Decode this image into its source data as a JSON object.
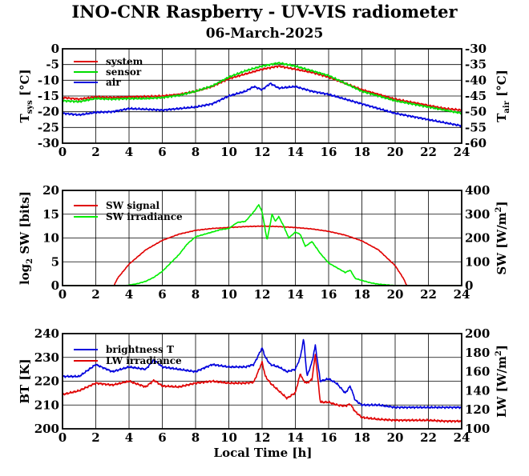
{
  "figure": {
    "title": "INO-CNR Raspberry - UV-VIS radiometer",
    "subtitle": "06-March-2025",
    "xlabel": "Local Time [h]"
  },
  "chart_data": [
    {
      "type": "line",
      "x_range": [
        0,
        24
      ],
      "x_ticks": [
        0,
        2,
        4,
        6,
        8,
        10,
        12,
        14,
        16,
        18,
        20,
        22,
        24
      ],
      "y_left": {
        "label": "T",
        "label_sub": "sys",
        "label_unit": " [°C]",
        "range": [
          -30,
          0
        ],
        "ticks": [
          0,
          -5,
          -10,
          -15,
          -20,
          -25,
          -30
        ]
      },
      "y_right": {
        "label": "T",
        "label_sub": "air",
        "label_unit": " [°C]",
        "range": [
          -60,
          -30
        ],
        "ticks": [
          -30,
          -35,
          -40,
          -45,
          -50,
          -55,
          -60
        ]
      },
      "grid": true,
      "legend_position": "top-left",
      "series": [
        {
          "name": "system",
          "color": "#e00000",
          "axis": "left",
          "x": [
            0,
            1,
            2,
            3,
            4,
            5,
            6,
            7,
            8,
            9,
            10,
            11,
            12,
            12.5,
            13,
            13.5,
            14,
            15,
            16,
            17,
            18,
            19,
            20,
            21,
            22,
            23,
            24
          ],
          "y": [
            -15.5,
            -16,
            -15.3,
            -15.5,
            -15.3,
            -15.2,
            -15,
            -14.5,
            -13.5,
            -12,
            -9.5,
            -8,
            -6.5,
            -6,
            -5.5,
            -6,
            -6.5,
            -7.5,
            -9,
            -11,
            -13,
            -14.5,
            -16,
            -17,
            -18,
            -19,
            -19.5
          ]
        },
        {
          "name": "sensor",
          "color": "#00dd00",
          "axis": "left",
          "x": [
            0,
            1,
            2,
            3,
            4,
            5,
            6,
            7,
            8,
            9,
            10,
            11,
            12,
            12.5,
            13,
            13.5,
            14,
            15,
            16,
            17,
            18,
            19,
            20,
            21,
            22,
            23,
            24
          ],
          "y": [
            -16.5,
            -16.8,
            -15.8,
            -16,
            -15.8,
            -15.8,
            -15.5,
            -14.8,
            -13.5,
            -11.8,
            -9,
            -7,
            -5.5,
            -5,
            -4.5,
            -5,
            -5.5,
            -7,
            -8.5,
            -11,
            -13.5,
            -15,
            -16.5,
            -17.5,
            -18.5,
            -19.5,
            -20.5
          ]
        },
        {
          "name": "air",
          "color": "#0000dd",
          "axis": "right",
          "x": [
            0,
            1,
            2,
            3,
            4,
            5,
            6,
            7,
            8,
            9,
            10,
            11,
            11.5,
            12,
            12.5,
            13,
            14,
            15,
            16,
            17,
            18,
            19,
            20,
            21,
            22,
            23,
            24
          ],
          "y": [
            -50.5,
            -51,
            -50.2,
            -50,
            -49,
            -49.2,
            -49.5,
            -49,
            -48.5,
            -47.5,
            -45,
            -43.5,
            -42,
            -43,
            -41,
            -42.5,
            -42,
            -43.5,
            -44.5,
            -46,
            -47.5,
            -49,
            -50.5,
            -51.5,
            -52.5,
            -53.5,
            -54.5
          ]
        }
      ]
    },
    {
      "type": "line",
      "x_range": [
        0,
        24
      ],
      "x_ticks": [
        0,
        2,
        4,
        6,
        8,
        10,
        12,
        14,
        16,
        18,
        20,
        22,
        24
      ],
      "y_left": {
        "label": "log",
        "label_sub": "2",
        "label_unit": " SW [bits]",
        "range": [
          0,
          20
        ],
        "ticks": [
          0,
          5,
          10,
          15,
          20
        ]
      },
      "y_right": {
        "label": "SW [W/m",
        "label_sup": "2",
        "label_unit": "]",
        "range": [
          0,
          400
        ],
        "ticks": [
          0,
          100,
          200,
          300,
          400
        ]
      },
      "grid": true,
      "legend_position": "top-left",
      "series": [
        {
          "name": "SW signal",
          "color": "#e00000",
          "axis": "left",
          "x": [
            0,
            3.1,
            3.3,
            4,
            5,
            6,
            7,
            8,
            9,
            10,
            11,
            12,
            13,
            14,
            15,
            16,
            17,
            18,
            19,
            20,
            20.5,
            20.7,
            24
          ],
          "y": [
            0,
            0,
            1.5,
            4.5,
            7.5,
            9.5,
            10.8,
            11.6,
            12,
            12.2,
            12.4,
            12.5,
            12.4,
            12.2,
            11.9,
            11.4,
            10.6,
            9.4,
            7.5,
            4.2,
            1.5,
            0,
            0
          ]
        },
        {
          "name": "SW irradiance",
          "color": "#00ee00",
          "axis": "right",
          "x": [
            0,
            3.8,
            4.5,
            5,
            5.5,
            6,
            6.5,
            7,
            7.5,
            8,
            8.5,
            9,
            9.5,
            10,
            10.5,
            11,
            11.5,
            11.8,
            12,
            12.3,
            12.6,
            12.8,
            13,
            13.3,
            13.6,
            14,
            14.3,
            14.6,
            15,
            15.5,
            16,
            16.5,
            17,
            17.3,
            17.6,
            18,
            18.5,
            19,
            19.5,
            20,
            24
          ],
          "y": [
            0,
            0,
            8,
            18,
            35,
            60,
            95,
            130,
            175,
            205,
            215,
            225,
            235,
            240,
            265,
            270,
            310,
            340,
            310,
            190,
            300,
            270,
            290,
            250,
            200,
            225,
            215,
            165,
            185,
            135,
            95,
            75,
            55,
            65,
            30,
            22,
            12,
            6,
            3,
            0,
            0
          ]
        }
      ]
    },
    {
      "type": "line",
      "x_range": [
        0,
        24
      ],
      "x_ticks": [
        0,
        2,
        4,
        6,
        8,
        10,
        12,
        14,
        16,
        18,
        20,
        22,
        24
      ],
      "y_left": {
        "label": "BT [K]",
        "range": [
          200,
          240
        ],
        "ticks": [
          200,
          210,
          220,
          230,
          240
        ]
      },
      "y_right": {
        "label": "LW [W/m",
        "label_sup": "2",
        "label_unit": "]",
        "range": [
          100,
          200
        ],
        "ticks": [
          100,
          120,
          140,
          160,
          180,
          200
        ]
      },
      "grid": true,
      "legend_position": "top-left",
      "series": [
        {
          "name": "brightness T",
          "color": "#0000dd",
          "axis": "left",
          "x": [
            0,
            1,
            2,
            3,
            4,
            5,
            5.5,
            6,
            7,
            8,
            9,
            10,
            11,
            11.5,
            12,
            12.2,
            12.5,
            13,
            13.5,
            14,
            14.3,
            14.5,
            14.7,
            15,
            15.2,
            15.5,
            16,
            16.5,
            17,
            17.3,
            17.6,
            18,
            19,
            20,
            21,
            22,
            23,
            24
          ],
          "y": [
            222,
            222,
            227,
            224,
            226,
            225,
            229,
            226,
            225,
            224,
            227,
            226,
            226,
            227,
            234,
            230,
            227,
            226,
            224,
            225,
            230,
            238,
            222,
            228,
            235,
            220,
            221,
            219,
            215,
            218,
            212,
            210,
            210,
            209,
            209,
            209,
            209,
            209
          ]
        },
        {
          "name": "LW irradiance",
          "color": "#e00000",
          "axis": "right",
          "x": [
            0,
            1,
            2,
            3,
            4,
            5,
            5.5,
            6,
            7,
            8,
            9,
            10,
            11,
            11.5,
            12,
            12.2,
            12.5,
            13,
            13.5,
            14,
            14.3,
            14.5,
            14.7,
            15,
            15.2,
            15.5,
            16,
            16.5,
            17,
            17.3,
            17.6,
            18,
            19,
            20,
            21,
            22,
            23,
            24
          ],
          "y": [
            136,
            140,
            148,
            146,
            150,
            144,
            151,
            145,
            144,
            148,
            150,
            148,
            148,
            149,
            170,
            155,
            148,
            140,
            132,
            138,
            158,
            150,
            148,
            152,
            178,
            128,
            128,
            125,
            124,
            126,
            118,
            112,
            110,
            109,
            109,
            109,
            108,
            108
          ]
        }
      ]
    }
  ]
}
